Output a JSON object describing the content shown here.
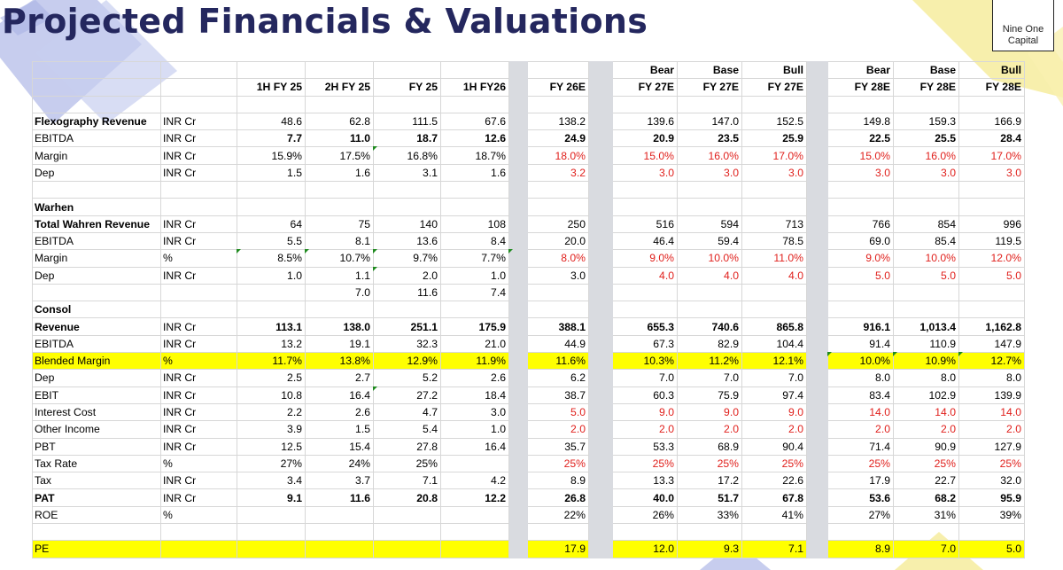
{
  "title": "Projected Financials & Valuations",
  "logo": {
    "line1": "Nine One",
    "line2": "Capital"
  },
  "colors": {
    "title": "#24275e",
    "highlight": "#ffff00",
    "projection_red": "#e0201c",
    "separator": "#d9dbe0"
  },
  "scenario_row": [
    "",
    "",
    "",
    "",
    "",
    "",
    "",
    "",
    "Bear",
    "Base",
    "Bull",
    "",
    "Bear",
    "Base",
    "Bull"
  ],
  "period_row": [
    "",
    "",
    "1H FY 25",
    "2H FY 25",
    "FY 25",
    "1H FY26",
    "",
    "FY 26E",
    "",
    "FY 27E",
    "FY 27E",
    "FY 27E",
    "",
    "FY 28E",
    "FY 28E",
    "FY 28E"
  ],
  "rows": [
    {
      "blank": true
    },
    {
      "label": "Flexography Revenue",
      "unit": "INR Cr",
      "label_bold": true,
      "h": [
        "48.6",
        "62.8",
        "111.5",
        "67.6"
      ],
      "fy26": "138.2",
      "fy27": [
        "139.6",
        "147.0",
        "152.5"
      ],
      "fy28": [
        "149.8",
        "159.3",
        "166.9"
      ]
    },
    {
      "label": "EBITDA",
      "unit": "INR Cr",
      "bold_values": true,
      "h": [
        "7.7",
        "11.0",
        "18.7",
        "12.6"
      ],
      "fy26": "24.9",
      "fy27": [
        "20.9",
        "23.5",
        "25.9"
      ],
      "fy28": [
        "22.5",
        "25.5",
        "28.4"
      ]
    },
    {
      "label": "Margin",
      "unit": "INR Cr",
      "proj_red": true,
      "h": [
        "15.9%",
        "17.5%",
        "16.8%",
        "18.7%"
      ],
      "fy26": "18.0%",
      "fy27": [
        "15.0%",
        "16.0%",
        "17.0%"
      ],
      "fy28": [
        "15.0%",
        "16.0%",
        "17.0%"
      ]
    },
    {
      "label": "Dep",
      "unit": "INR Cr",
      "proj_red": true,
      "h": [
        "1.5",
        "1.6",
        "3.1",
        "1.6"
      ],
      "fy26": "3.2",
      "fy27": [
        "3.0",
        "3.0",
        "3.0"
      ],
      "fy28": [
        "3.0",
        "3.0",
        "3.0"
      ]
    },
    {
      "blank": true
    },
    {
      "label": "Warhen",
      "unit": "",
      "label_bold": true,
      "h": [
        "",
        "",
        "",
        ""
      ],
      "fy26": "",
      "fy27": [
        "",
        "",
        ""
      ],
      "fy28": [
        "",
        "",
        ""
      ]
    },
    {
      "label": "Total Wahren Revenue",
      "unit": "INR Cr",
      "label_bold": true,
      "h": [
        "64",
        "75",
        "140",
        "108"
      ],
      "fy26": "250",
      "fy27": [
        "516",
        "594",
        "713"
      ],
      "fy28": [
        "766",
        "854",
        "996"
      ]
    },
    {
      "label": "EBITDA",
      "unit": "INR Cr",
      "h": [
        "5.5",
        "8.1",
        "13.6",
        "8.4"
      ],
      "fy26": "20.0",
      "fy27": [
        "46.4",
        "59.4",
        "78.5"
      ],
      "fy28": [
        "69.0",
        "85.4",
        "119.5"
      ]
    },
    {
      "label": "Margin",
      "unit": "%",
      "proj_red": true,
      "h": [
        "8.5%",
        "10.7%",
        "9.7%",
        "7.7%"
      ],
      "fy26": "8.0%",
      "fy27": [
        "9.0%",
        "10.0%",
        "11.0%"
      ],
      "fy28": [
        "9.0%",
        "10.0%",
        "12.0%"
      ]
    },
    {
      "label": "Dep",
      "unit": "INR Cr",
      "red_27_28": true,
      "h": [
        "1.0",
        "1.1",
        "2.0",
        "1.0"
      ],
      "fy26": "3.0",
      "fy27": [
        "4.0",
        "4.0",
        "4.0"
      ],
      "fy28": [
        "5.0",
        "5.0",
        "5.0"
      ]
    },
    {
      "label": "",
      "unit": "",
      "h": [
        "",
        "7.0",
        "11.6",
        "7.4"
      ],
      "fy26": "",
      "fy27": [
        "",
        "",
        ""
      ],
      "fy28": [
        "",
        "",
        ""
      ]
    },
    {
      "label": "Consol",
      "unit": "",
      "label_bold": true,
      "h": [
        "",
        "",
        "",
        ""
      ],
      "fy26": "",
      "fy27": [
        "",
        "",
        ""
      ],
      "fy28": [
        "",
        "",
        ""
      ]
    },
    {
      "label": "Revenue",
      "unit": "INR Cr",
      "label_bold": true,
      "bold_values": true,
      "h": [
        "113.1",
        "138.0",
        "251.1",
        "175.9"
      ],
      "fy26": "388.1",
      "fy27": [
        "655.3",
        "740.6",
        "865.8"
      ],
      "fy28": [
        "916.1",
        "1,013.4",
        "1,162.8"
      ]
    },
    {
      "label": "EBITDA",
      "unit": "INR Cr",
      "h": [
        "13.2",
        "19.1",
        "32.3",
        "21.0"
      ],
      "fy26": "44.9",
      "fy27": [
        "67.3",
        "82.9",
        "104.4"
      ],
      "fy28": [
        "91.4",
        "110.9",
        "147.9"
      ]
    },
    {
      "label": "Blended Margin",
      "unit": "%",
      "highlight": true,
      "h": [
        "11.7%",
        "13.8%",
        "12.9%",
        "11.9%"
      ],
      "fy26": "11.6%",
      "fy27": [
        "10.3%",
        "11.2%",
        "12.1%"
      ],
      "fy28": [
        "10.0%",
        "10.9%",
        "12.7%"
      ]
    },
    {
      "label": "Dep",
      "unit": "INR Cr",
      "h": [
        "2.5",
        "2.7",
        "5.2",
        "2.6"
      ],
      "fy26": "6.2",
      "fy27": [
        "7.0",
        "7.0",
        "7.0"
      ],
      "fy28": [
        "8.0",
        "8.0",
        "8.0"
      ]
    },
    {
      "label": "EBIT",
      "unit": "INR Cr",
      "h": [
        "10.8",
        "16.4",
        "27.2",
        "18.4"
      ],
      "fy26": "38.7",
      "fy27": [
        "60.3",
        "75.9",
        "97.4"
      ],
      "fy28": [
        "83.4",
        "102.9",
        "139.9"
      ]
    },
    {
      "label": "Interest Cost",
      "unit": "INR Cr",
      "proj_red": true,
      "h": [
        "2.2",
        "2.6",
        "4.7",
        "3.0"
      ],
      "fy26": "5.0",
      "fy27": [
        "9.0",
        "9.0",
        "9.0"
      ],
      "fy28": [
        "14.0",
        "14.0",
        "14.0"
      ]
    },
    {
      "label": "Other Income",
      "unit": "INR Cr",
      "proj_red": true,
      "h": [
        "3.9",
        "1.5",
        "5.4",
        "1.0"
      ],
      "fy26": "2.0",
      "fy27": [
        "2.0",
        "2.0",
        "2.0"
      ],
      "fy28": [
        "2.0",
        "2.0",
        "2.0"
      ]
    },
    {
      "label": "PBT",
      "unit": "INR Cr",
      "h": [
        "12.5",
        "15.4",
        "27.8",
        "16.4"
      ],
      "fy26": "35.7",
      "fy27": [
        "53.3",
        "68.9",
        "90.4"
      ],
      "fy28": [
        "71.4",
        "90.9",
        "127.9"
      ]
    },
    {
      "label": "Tax Rate",
      "unit": "%",
      "proj_red": true,
      "h": [
        "27%",
        "24%",
        "25%",
        ""
      ],
      "fy26": "25%",
      "fy27": [
        "25%",
        "25%",
        "25%"
      ],
      "fy28": [
        "25%",
        "25%",
        "25%"
      ]
    },
    {
      "label": "Tax",
      "unit": "INR Cr",
      "h": [
        "3.4",
        "3.7",
        "7.1",
        "4.2"
      ],
      "fy26": "8.9",
      "fy27": [
        "13.3",
        "17.2",
        "22.6"
      ],
      "fy28": [
        "17.9",
        "22.7",
        "32.0"
      ]
    },
    {
      "label": "PAT",
      "unit": "INR Cr",
      "label_bold": true,
      "bold_values": true,
      "h": [
        "9.1",
        "11.6",
        "20.8",
        "12.2"
      ],
      "fy26": "26.8",
      "fy27": [
        "40.0",
        "51.7",
        "67.8"
      ],
      "fy28": [
        "53.6",
        "68.2",
        "95.9"
      ]
    },
    {
      "label": "ROE",
      "unit": "%",
      "h": [
        "",
        "",
        "",
        ""
      ],
      "fy26": "22%",
      "fy27": [
        "26%",
        "33%",
        "41%"
      ],
      "fy28": [
        "27%",
        "31%",
        "39%"
      ]
    },
    {
      "blank": true
    },
    {
      "label": "PE",
      "unit": "",
      "highlight": true,
      "h": [
        "",
        "",
        "",
        ""
      ],
      "fy26": "17.9",
      "fy27": [
        "12.0",
        "9.3",
        "7.1"
      ],
      "fy28": [
        "8.9",
        "7.0",
        "5.0"
      ]
    }
  ]
}
